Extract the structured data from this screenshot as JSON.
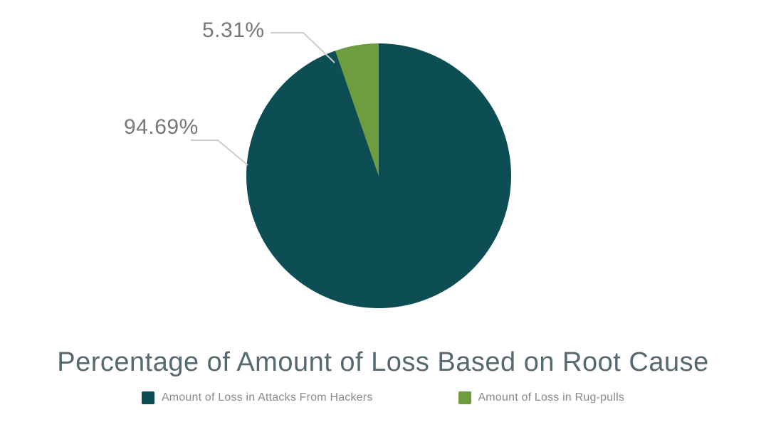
{
  "chart_data": {
    "type": "pie",
    "title": "Percentage of Amount of Loss Based on Root Cause",
    "slices": [
      {
        "label": "Amount of Loss in Attacks From Hackers",
        "value": 94.69,
        "display": "94.69%",
        "color": "#0d4d54"
      },
      {
        "label": "Amount of Loss in Rug-pulls",
        "value": 5.31,
        "display": "5.31%",
        "color": "#6f9c3e"
      }
    ],
    "legend_position": "bottom",
    "start_angle": "top",
    "direction": "clockwise",
    "label_line_color": "#cccccc"
  }
}
